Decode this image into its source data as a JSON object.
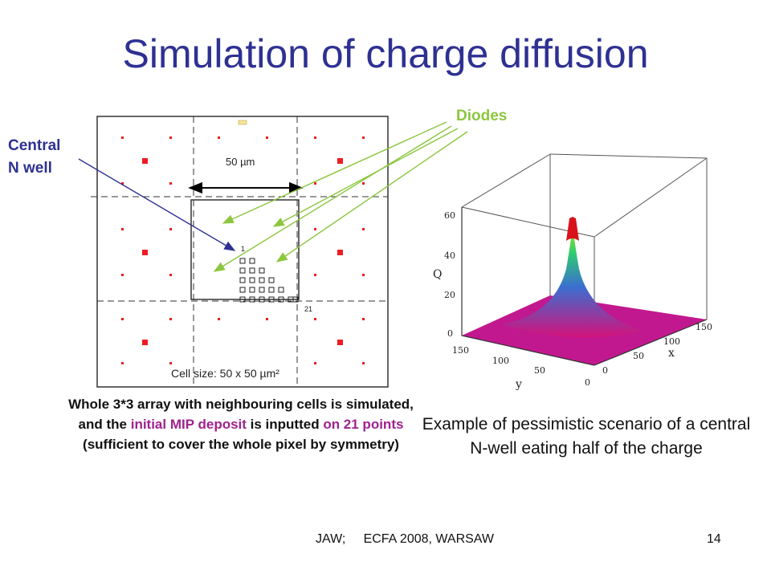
{
  "slide": {
    "title": "Simulation of charge diffusion",
    "labels": {
      "diodes": "Diodes",
      "central_nwell_line1": "Central",
      "central_nwell_line2": "N well",
      "pitch": "50 µm",
      "cell_size": "Cell size: 50 x 50 µm²",
      "point_first": "1",
      "point_last": "21"
    },
    "description_left": {
      "part1": "Whole 3*3 array with neighbouring cells is simulated, and the ",
      "highlight1": "initial MIP deposit",
      "part2": " is inputted ",
      "highlight2": "on 21 points",
      "part3": " (sufficient to cover the whole pixel by symmetry)"
    },
    "description_right": "Example of pessimistic scenario of a central N-well eating half of the charge",
    "plot": {
      "z_axis_label": "Q",
      "z_ticks": [
        "0",
        "20",
        "40",
        "60"
      ],
      "x_axis_label": "x",
      "x_ticks": [
        "0",
        "50",
        "100",
        "150"
      ],
      "y_axis_label": "y",
      "y_ticks": [
        "150",
        "100",
        "50",
        "0"
      ]
    },
    "footer": "JAW;     ECFA 2008, WARSAW",
    "page_number": "14",
    "colors": {
      "title": "#2e3192",
      "diodes": "#8cc63f",
      "nwell": "#2e3192",
      "highlight": "#a0228e",
      "diode_dot": "#ed1c24"
    }
  }
}
